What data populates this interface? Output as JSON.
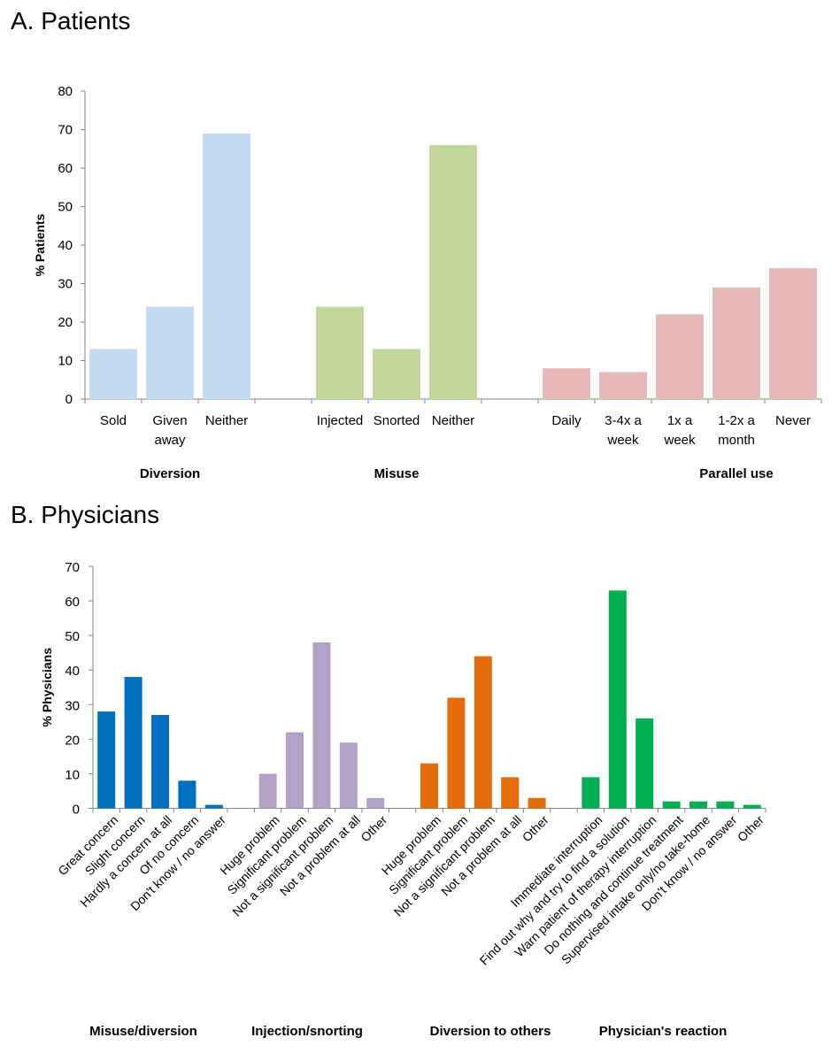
{
  "panels": {
    "a_title": "A.  Patients",
    "b_title": "B. Physicians"
  },
  "chart_data": [
    {
      "type": "bar",
      "title": "A.  Patients",
      "ylabel": "% Patients",
      "xlabel": "",
      "ylim": [
        0,
        80
      ],
      "yticks": [
        0,
        10,
        20,
        30,
        40,
        50,
        60,
        70,
        80
      ],
      "grid": false,
      "groups": [
        {
          "name": "Diversion",
          "color": "#C5D9F1",
          "categories": [
            "Sold",
            "Given away",
            "Neither"
          ],
          "category_lines": [
            [
              "Sold"
            ],
            [
              "Given",
              "away"
            ],
            [
              "Neither"
            ]
          ],
          "values": [
            13,
            24,
            69
          ]
        },
        {
          "name": "Misuse",
          "color": "#C4D79B",
          "categories": [
            "Injected",
            "Snorted",
            "Neither"
          ],
          "category_lines": [
            [
              "Injected"
            ],
            [
              "Snorted"
            ],
            [
              "Neither"
            ]
          ],
          "values": [
            24,
            13,
            66
          ]
        },
        {
          "name": "Parallel use",
          "color": "#E6B9B8",
          "categories": [
            "Daily",
            "3-4x a week",
            "1x a week",
            "1-2x a month",
            "Never"
          ],
          "category_lines": [
            [
              "Daily"
            ],
            [
              "3-4x a",
              "week"
            ],
            [
              "1x a",
              "week"
            ],
            [
              "1-2x a",
              "month"
            ],
            [
              "Never"
            ]
          ],
          "values": [
            8,
            7,
            22,
            29,
            34
          ]
        }
      ]
    },
    {
      "type": "bar",
      "title": "B. Physicians",
      "ylabel": "% Physicians",
      "xlabel": "",
      "ylim": [
        0,
        70
      ],
      "yticks": [
        0,
        10,
        20,
        30,
        40,
        50,
        60,
        70
      ],
      "grid": false,
      "groups": [
        {
          "name": "Misuse/diversion",
          "color": "#0070C0",
          "categories": [
            "Great concern",
            "Slight concern",
            "Hardly a concern at all",
            "Of no concern",
            "Don't know / no answer"
          ],
          "values": [
            28,
            38,
            27,
            8,
            1
          ]
        },
        {
          "name": "Injection/snorting",
          "color": "#B2A2C7",
          "categories": [
            "Huge problem",
            "Significant problem",
            "Not a significant problem",
            "Not a problem at all",
            "Other"
          ],
          "values": [
            10,
            22,
            48,
            19,
            3
          ]
        },
        {
          "name": "Diversion to others",
          "color": "#E46C0A",
          "categories": [
            "Huge problem",
            "Significant problem",
            "Not a significant problem",
            "Not a problem at all",
            "Other"
          ],
          "values": [
            13,
            32,
            44,
            9,
            3
          ]
        },
        {
          "name": "Physician's reaction",
          "color": "#00B050",
          "categories": [
            "Immediate interruption",
            "Find out why and try to find a solution",
            "Warn patient of therapy interruption",
            "Do nothing and continue treatment",
            "Supervised intake only/no take-home",
            "Don't know / no answer",
            "Other"
          ],
          "values": [
            9,
            63,
            26,
            2,
            2,
            2,
            1
          ]
        }
      ]
    }
  ]
}
